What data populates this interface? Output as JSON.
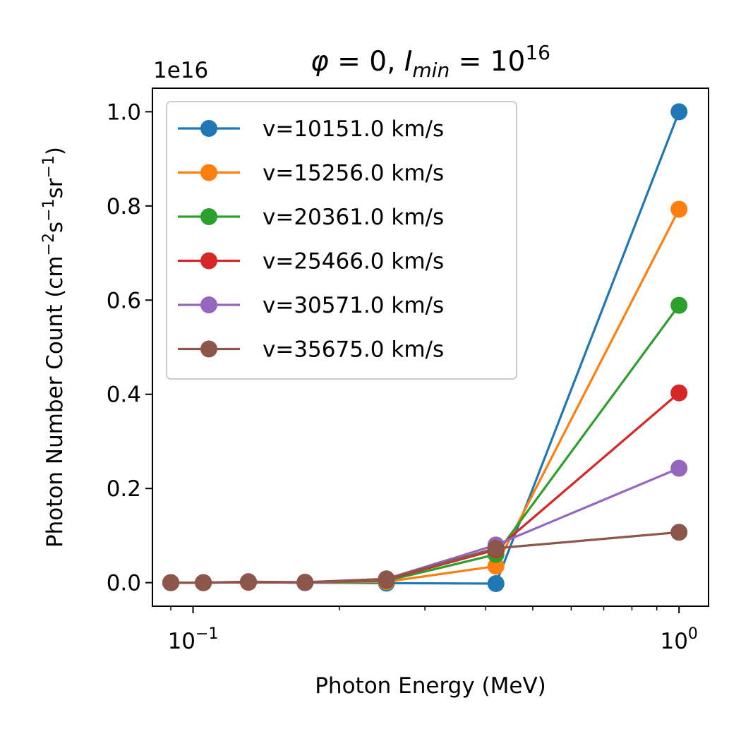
{
  "chart_data": {
    "type": "line",
    "title": {
      "phi": "φ",
      "eq1": " = 0, ",
      "I": "I",
      "sub": "min",
      "eq2": " = 10",
      "sup": "16"
    },
    "offset_label": "1e16",
    "xlabel": "Photon Energy (MeV)",
    "ylabel": {
      "pre": "Photon Number Count (cm",
      "sup1": "−2",
      "mid1": "s",
      "sup2": "−1",
      "mid2": "sr",
      "sup3": "−1",
      "post": ")"
    },
    "xscale": "log",
    "xlim": [
      0.0825,
      1.15
    ],
    "ylim": [
      -0.05,
      1.05
    ],
    "yticks": [
      0.0,
      0.2,
      0.4,
      0.6,
      0.8,
      1.0
    ],
    "ytick_labels": [
      "0.0",
      "0.2",
      "0.4",
      "0.6",
      "0.8",
      "1.0"
    ],
    "xticks": [
      {
        "value": 0.1,
        "base": "10",
        "exp": "−1"
      },
      {
        "value": 1.0,
        "base": "10",
        "exp": "0"
      }
    ],
    "legend_position": "top-left",
    "x": [
      0.09,
      0.105,
      0.13,
      0.17,
      0.25,
      0.42,
      1.0
    ],
    "series": [
      {
        "name": "v=10151.0 km/s",
        "color": "#1f77b4",
        "values": [
          0.0,
          0.0,
          0.001,
          0.0,
          -0.001,
          -0.002,
          1.0
        ]
      },
      {
        "name": "v=15256.0 km/s",
        "color": "#ff7f0e",
        "values": [
          0.0,
          0.0,
          0.001,
          0.0,
          0.002,
          0.035,
          0.793
        ]
      },
      {
        "name": "v=20361.0 km/s",
        "color": "#2ca02c",
        "values": [
          0.0,
          0.0,
          0.001,
          0.0,
          0.004,
          0.06,
          0.589
        ]
      },
      {
        "name": "v=25466.0 km/s",
        "color": "#d62728",
        "values": [
          0.0,
          0.0,
          0.001,
          0.0,
          0.006,
          0.07,
          0.403
        ]
      },
      {
        "name": "v=30571.0 km/s",
        "color": "#9467bd",
        "values": [
          0.0,
          0.0,
          0.002,
          0.0,
          0.008,
          0.08,
          0.243
        ]
      },
      {
        "name": "v=35675.0 km/s",
        "color": "#8c564b",
        "values": [
          0.0,
          0.0,
          0.002,
          0.001,
          0.008,
          0.073,
          0.107
        ]
      }
    ]
  }
}
